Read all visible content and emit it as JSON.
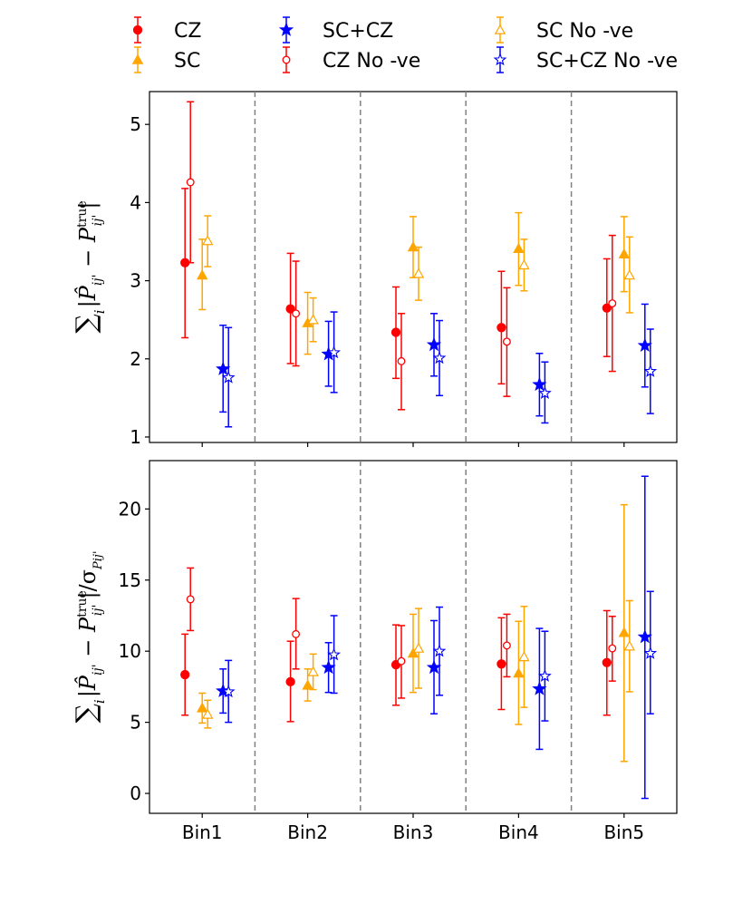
{
  "chart_data": [
    {
      "type": "scatter",
      "panel": "top",
      "ylabel_parts": {
        "sum": "∑",
        "index": "i",
        "bar_open": "|",
        "p_hat": "P̂",
        "sub": "ij'",
        "minus": "−",
        "p": "P",
        "sup": "true",
        "bar_close": "|"
      },
      "categories": [
        "Bin1",
        "Bin2",
        "Bin3",
        "Bin4",
        "Bin5"
      ],
      "ylim": [
        0.93,
        5.42
      ],
      "yticks": [
        1,
        2,
        3,
        4,
        5
      ],
      "series": [
        {
          "name": "CZ",
          "color": "#ff0000",
          "marker": "circle-filled",
          "values": [
            3.23,
            2.64,
            2.34,
            2.4,
            2.65
          ],
          "lower": [
            2.27,
            1.94,
            1.75,
            1.68,
            2.03
          ],
          "upper": [
            4.18,
            3.35,
            2.92,
            3.12,
            3.28
          ]
        },
        {
          "name": "CZ No -ve",
          "color": "#ff0000",
          "marker": "circle-open",
          "values": [
            4.26,
            2.58,
            1.97,
            2.22,
            2.71
          ],
          "lower": [
            3.23,
            1.91,
            1.35,
            1.52,
            1.84
          ],
          "upper": [
            5.29,
            3.25,
            2.58,
            2.91,
            3.58
          ]
        },
        {
          "name": "SC",
          "color": "#ffa500",
          "marker": "triangle-filled",
          "values": [
            3.07,
            2.46,
            3.43,
            3.41,
            3.34
          ],
          "lower": [
            2.63,
            2.06,
            3.04,
            2.94,
            2.86
          ],
          "upper": [
            3.53,
            2.85,
            3.82,
            3.87,
            3.82
          ]
        },
        {
          "name": "SC No -ve",
          "color": "#ffa500",
          "marker": "triangle-open",
          "values": [
            3.51,
            2.5,
            3.09,
            3.2,
            3.07
          ],
          "lower": [
            3.18,
            2.22,
            2.75,
            2.87,
            2.59
          ],
          "upper": [
            3.83,
            2.78,
            3.43,
            3.53,
            3.56
          ]
        },
        {
          "name": "SC+CZ",
          "color": "#0000ff",
          "marker": "star-filled",
          "values": [
            1.87,
            2.06,
            2.18,
            1.67,
            2.17
          ],
          "lower": [
            1.32,
            1.65,
            1.78,
            1.27,
            1.64
          ],
          "upper": [
            2.43,
            2.48,
            2.58,
            2.07,
            2.7
          ]
        },
        {
          "name": "SC+CZ No -ve",
          "color": "#0000ff",
          "marker": "star-open",
          "values": [
            1.76,
            2.08,
            2.01,
            1.56,
            1.84
          ],
          "lower": [
            1.13,
            1.57,
            1.53,
            1.18,
            1.3
          ],
          "upper": [
            2.4,
            2.6,
            2.49,
            1.96,
            2.38
          ]
        }
      ]
    },
    {
      "type": "scatter",
      "panel": "bottom",
      "ylabel_parts": {
        "sum": "∑",
        "index": "i",
        "bar_open": "|",
        "p_hat": "P̂",
        "sub": "ij'",
        "minus": "−",
        "p": "P",
        "sup": "true",
        "bar_close": "|/σ",
        "sigma_sub": "Pij'"
      },
      "categories": [
        "Bin1",
        "Bin2",
        "Bin3",
        "Bin4",
        "Bin5"
      ],
      "ylim": [
        -1.4,
        23.4
      ],
      "yticks": [
        0,
        5,
        10,
        15,
        20
      ],
      "series": [
        {
          "name": "CZ",
          "color": "#ff0000",
          "marker": "circle-filled",
          "values": [
            8.35,
            7.85,
            9.05,
            9.1,
            9.2
          ],
          "lower": [
            5.5,
            5.05,
            6.2,
            5.9,
            5.5
          ],
          "upper": [
            11.2,
            10.7,
            11.85,
            12.35,
            12.85
          ]
        },
        {
          "name": "CZ No -ve",
          "color": "#ff0000",
          "marker": "circle-open",
          "values": [
            13.65,
            11.2,
            9.3,
            10.4,
            10.2
          ],
          "lower": [
            11.45,
            8.75,
            6.7,
            8.2,
            7.9
          ],
          "upper": [
            15.85,
            13.7,
            11.8,
            12.6,
            12.45
          ]
        },
        {
          "name": "SC",
          "color": "#ffa500",
          "marker": "triangle-filled",
          "values": [
            6.0,
            7.6,
            9.85,
            8.45,
            11.3
          ],
          "lower": [
            4.95,
            6.5,
            7.1,
            4.85,
            2.25
          ],
          "upper": [
            7.05,
            8.75,
            12.6,
            12.1,
            20.3
          ]
        },
        {
          "name": "SC No -ve",
          "color": "#ffa500",
          "marker": "triangle-open",
          "values": [
            5.55,
            8.55,
            10.2,
            9.6,
            10.35
          ],
          "lower": [
            4.6,
            7.3,
            7.4,
            6.05,
            7.15
          ],
          "upper": [
            6.55,
            9.8,
            13.0,
            13.15,
            13.55
          ]
        },
        {
          "name": "SC+CZ",
          "color": "#0000ff",
          "marker": "star-filled",
          "values": [
            7.2,
            8.85,
            8.85,
            7.35,
            11.0
          ],
          "lower": [
            5.65,
            7.1,
            5.6,
            3.1,
            -0.35
          ],
          "upper": [
            8.75,
            10.6,
            12.15,
            11.6,
            22.3
          ]
        },
        {
          "name": "SC+CZ No -ve",
          "color": "#0000ff",
          "marker": "star-open",
          "values": [
            7.15,
            9.75,
            10.0,
            8.25,
            9.85
          ],
          "lower": [
            5.0,
            7.05,
            6.9,
            5.1,
            5.6
          ],
          "upper": [
            9.35,
            12.5,
            13.1,
            11.4,
            14.2
          ]
        }
      ]
    }
  ],
  "legend": {
    "entries": [
      "CZ",
      "SC",
      "SC+CZ",
      "CZ No -ve",
      "SC No -ve",
      "SC+CZ No -ve"
    ],
    "placement": "top-center"
  },
  "colors": {
    "cz": "#ff0000",
    "sc": "#ffa500",
    "sccz": "#0000ff",
    "separator": "#808080",
    "axis": "#000000"
  }
}
